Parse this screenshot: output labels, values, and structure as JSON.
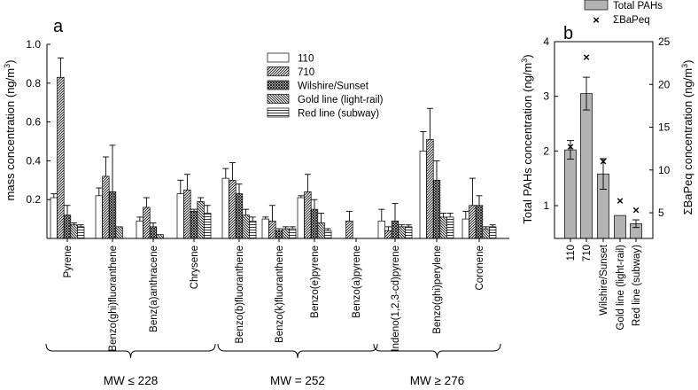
{
  "chart_data": [
    {
      "type": "bar",
      "panel_label": "a",
      "ylabel_main": "mass concentration (ng/m",
      "ylabel_sup": "3",
      "ylabel_end": ")",
      "ylim": [
        0,
        1.0
      ],
      "yticks": [
        "0.2",
        "0.4",
        "0.6",
        "0.8",
        "1.0"
      ],
      "ytick_values": [
        0.2,
        0.4,
        0.6,
        0.8,
        1.0
      ],
      "categories": [
        "Pyrene",
        "Benzo(ghi)fluoranthene",
        "Benz(a)anthracene",
        "Chrysene",
        "Benzo(b)fluoranthene",
        "Benzo(k)fluoranthene",
        "Benzo(e)pyrene",
        "Benzo(a)pyrene",
        "Indeno(1,2,3-cd)pyrene",
        "Benzo(ghi)perylene",
        "Coronene"
      ],
      "series": [
        {
          "name": "110",
          "values": [
            0.21,
            0.22,
            0.09,
            0.23,
            0.31,
            0.1,
            0.21,
            null,
            0.09,
            0.45,
            0.1
          ],
          "errors": [
            0.02,
            0.04,
            0.02,
            0.07,
            0.05,
            0.01,
            0.01,
            null,
            0.06,
            0.1,
            0.04
          ]
        },
        {
          "name": "710",
          "values": [
            0.83,
            0.32,
            0.16,
            0.25,
            0.3,
            0.09,
            0.24,
            0.09,
            0.04,
            0.51,
            0.17
          ]
        },
        {
          "name": "Wilshire/Sunset",
          "values": [
            0.12,
            0.24,
            0.06,
            0.14,
            0.23,
            0.04,
            0.15,
            null,
            0.09,
            0.3,
            0.17
          ]
        },
        {
          "name": "Gold line (light-rail)",
          "values": [
            0.07,
            0.06,
            0.02,
            0.19,
            0.12,
            0.05,
            0.08,
            null,
            0.06,
            0.11,
            0.05
          ]
        },
        {
          "name": "Red line (subway)",
          "values": [
            0.06,
            null,
            null,
            0.13,
            0.09,
            0.05,
            0.04,
            null,
            0.06,
            0.11,
            0.06
          ]
        }
      ],
      "series_errors": [
        [
          0.02,
          0.04,
          0.02,
          0.07,
          0.05,
          0.01,
          0.01,
          null,
          0.06,
          0.1,
          0.04
        ],
        [
          0.1,
          0.1,
          0.05,
          0.08,
          0.09,
          0.08,
          0.09,
          0.05,
          0.02,
          0.16,
          0.14
        ],
        [
          0.05,
          0.24,
          0.02,
          0.01,
          0.05,
          0.01,
          0.05,
          null,
          0.09,
          0.1,
          0.05
        ],
        [
          0.01,
          null,
          null,
          0.02,
          0.03,
          0.01,
          0.05,
          null,
          0.01,
          0.02,
          0.01
        ],
        [
          0.01,
          null,
          null,
          0.04,
          0.02,
          0.01,
          0.01,
          null,
          0.01,
          0.02,
          0.01
        ]
      ],
      "groups": [
        {
          "label": "MW ≤ 228",
          "from": 0,
          "to": 3
        },
        {
          "label": "MW = 252",
          "from": 4,
          "to": 7
        },
        {
          "label": "MW ≥ 276",
          "from": 8,
          "to": 10
        }
      ],
      "legend": [
        "110",
        "710",
        "Wilshire/Sunset",
        "Gold line (light-rail)",
        "Red line (subway)"
      ]
    },
    {
      "type": "bar",
      "panel_label": "b",
      "categories": [
        "110",
        "710",
        "Wilshire/Sunset",
        "Gold line (light-rail)",
        "Red line (subway)"
      ],
      "bar_series": {
        "name": "Total PAHs",
        "values": [
          2.02,
          3.05,
          1.58,
          0.82,
          0.67
        ],
        "errors": [
          0.17,
          0.3,
          0.28,
          null,
          0.07
        ]
      },
      "marker_series": {
        "name": "ΣBaPeq",
        "values": [
          12.7,
          23.2,
          11.0,
          6.4,
          5.3
        ]
      },
      "ylabel_left_main": "Total PAHs concentration (ng/m",
      "ylabel_left_sup": "3",
      "ylabel_left_end": ")",
      "ylim_left": [
        0.4,
        4.0
      ],
      "yticks_left": [
        "1",
        "2",
        "3",
        "4"
      ],
      "ytick_values_left": [
        1,
        2,
        3,
        4
      ],
      "ylabel_right_main": "ΣBaPeq concentration (ng/m",
      "ylabel_right_sup": "3",
      "ylabel_right_end": ")",
      "ylim_right": [
        2.0,
        25.0
      ],
      "yticks_right": [
        "5",
        "10",
        "15",
        "20",
        "25"
      ],
      "ytick_values_right": [
        5,
        10,
        15,
        20,
        25
      ],
      "legend": [
        "Total PAHs",
        "ΣBaPeq"
      ]
    }
  ]
}
